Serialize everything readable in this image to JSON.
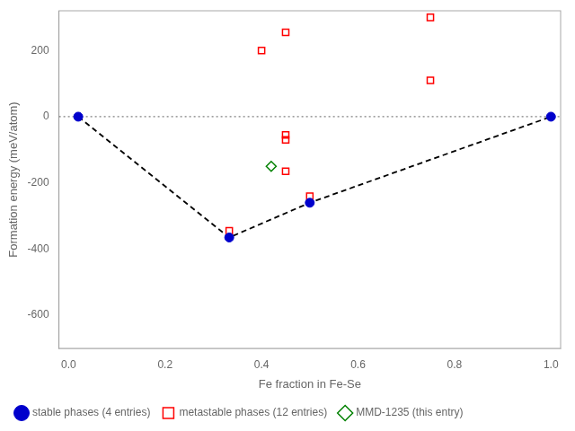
{
  "chart_data": {
    "type": "scatter",
    "xlabel": "Fe fraction in Fe-Se",
    "ylabel": "Formation energy (meV/atom)",
    "xlim": [
      -0.02,
      1.02
    ],
    "ylim": [
      -700,
      320
    ],
    "xticks": [
      {
        "value": 0.0,
        "label": "0.0"
      },
      0.2,
      0.4,
      0.6,
      0.8,
      {
        "value": 1.0,
        "label": "1.0"
      }
    ],
    "yticks": [
      200,
      0,
      -200,
      -400,
      -600
    ],
    "grid": false,
    "legend": "lower left",
    "series": [
      {
        "name": "stable phases (4 entries)",
        "color": "#0000cc",
        "marker": "circle",
        "x": [
          0.02,
          0.333,
          0.5,
          1.0
        ],
        "values": [
          0,
          -365,
          -260,
          0
        ]
      },
      {
        "name": "metastable phases (12 entries)",
        "color": "red",
        "marker": "open square",
        "x": [
          0.333,
          0.4,
          0.45,
          0.45,
          0.45,
          0.45,
          0.5,
          0.75,
          0.75
        ],
        "values": [
          -345,
          200,
          255,
          -55,
          -70,
          -165,
          -240,
          300,
          110
        ]
      },
      {
        "name": "MMD-1235 (this entry)",
        "color": "green",
        "marker": "open diamond",
        "x": [
          0.42
        ],
        "values": [
          -150
        ]
      },
      {
        "type": "line",
        "color": "black",
        "line_style": "dashed",
        "x": [
          0.02,
          0.333,
          0.5,
          1.0
        ],
        "values": [
          0,
          -365,
          -260,
          0
        ]
      }
    ],
    "hlines": [
      {
        "value": 0,
        "color": "gray",
        "line_style": "dotted"
      }
    ]
  }
}
